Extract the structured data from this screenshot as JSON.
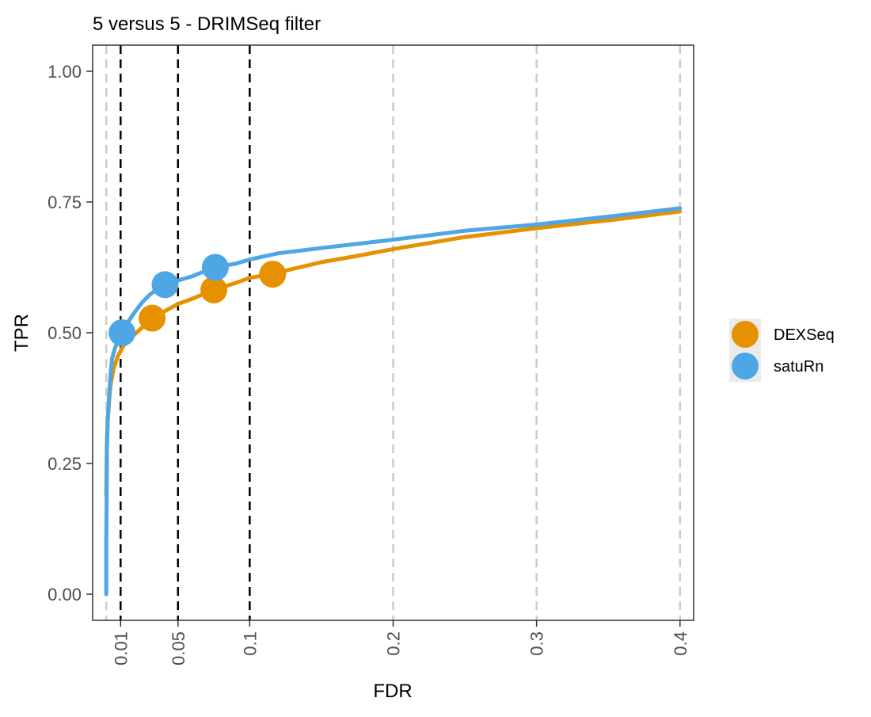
{
  "chart_data": {
    "type": "line",
    "title": "5 versus 5 - DRIMSeq filter",
    "xlabel": "FDR",
    "ylabel": "TPR",
    "xlim": [
      -0.0095,
      0.4095
    ],
    "ylim": [
      -0.05,
      1.05
    ],
    "x_ticks": [
      0.01,
      0.05,
      0.1,
      0.2,
      0.3,
      0.4
    ],
    "x_tick_labels": [
      "0.01",
      "0.05",
      "0.1",
      "0.2",
      "0.3",
      "0.4"
    ],
    "y_ticks": [
      0,
      0.25,
      0.5,
      0.75,
      1.0
    ],
    "y_tick_labels": [
      "0.00",
      "0.25",
      "0.50",
      "0.75",
      "1.00"
    ],
    "grid": "off",
    "threshold_lines": [
      0.01,
      0.05,
      0.1
    ],
    "light_vertical_lines": [
      0,
      0.1,
      0.2,
      0.3,
      0.4
    ],
    "legend": "right",
    "colors": {
      "DEXSeq": "#e69100",
      "satuRn": "#4ea6e4",
      "threshold": "#000000",
      "reference": "#cccccc"
    },
    "series": [
      {
        "name": "DEXSeq",
        "color": "#e69100",
        "x": [
          0.0,
          0.0003,
          0.0005,
          0.001,
          0.002,
          0.003,
          0.005,
          0.008,
          0.012,
          0.017,
          0.025,
          0.032,
          0.04,
          0.05,
          0.06,
          0.075,
          0.09,
          0.1,
          0.115,
          0.13,
          0.15,
          0.175,
          0.2,
          0.25,
          0.3,
          0.35,
          0.4
        ],
        "y": [
          0.19,
          0.27,
          0.3,
          0.33,
          0.37,
          0.4,
          0.43,
          0.455,
          0.475,
          0.49,
          0.51,
          0.525,
          0.54,
          0.555,
          0.565,
          0.582,
          0.595,
          0.605,
          0.612,
          0.622,
          0.635,
          0.647,
          0.66,
          0.683,
          0.7,
          0.715,
          0.732
        ],
        "points": [
          {
            "x": 0.032,
            "y": 0.528
          },
          {
            "x": 0.075,
            "y": 0.582
          },
          {
            "x": 0.116,
            "y": 0.612
          }
        ]
      },
      {
        "name": "satuRn",
        "color": "#4ea6e4",
        "x": [
          0.0,
          0.0,
          0.0003,
          0.0005,
          0.001,
          0.002,
          0.003,
          0.004,
          0.006,
          0.009,
          0.011,
          0.015,
          0.02,
          0.025,
          0.03,
          0.036,
          0.04,
          0.05,
          0.06,
          0.075,
          0.09,
          0.1,
          0.12,
          0.15,
          0.2,
          0.25,
          0.3,
          0.35,
          0.4
        ],
        "y": [
          0.0,
          0.1,
          0.2,
          0.28,
          0.33,
          0.38,
          0.42,
          0.45,
          0.47,
          0.49,
          0.5,
          0.52,
          0.54,
          0.558,
          0.572,
          0.585,
          0.592,
          0.6,
          0.608,
          0.625,
          0.632,
          0.64,
          0.652,
          0.662,
          0.678,
          0.695,
          0.707,
          0.722,
          0.738
        ],
        "points": [
          {
            "x": 0.011,
            "y": 0.5
          },
          {
            "x": 0.041,
            "y": 0.592
          },
          {
            "x": 0.076,
            "y": 0.625
          }
        ]
      }
    ]
  }
}
